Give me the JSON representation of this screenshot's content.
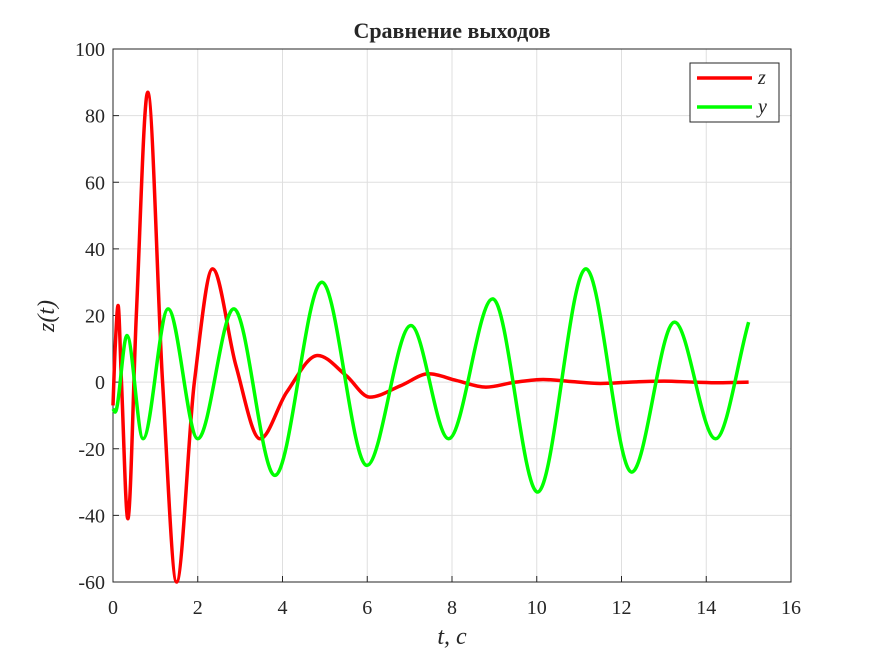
{
  "chart_data": {
    "type": "line",
    "title": "Сравнение выходов",
    "x_label": "t, c",
    "y_label": "z(t)",
    "xlim": [
      0,
      16
    ],
    "xticks": [
      0,
      2,
      4,
      6,
      8,
      10,
      12,
      14,
      16
    ],
    "ylim": [
      -60,
      100
    ],
    "yticks": [
      -60,
      -40,
      -20,
      0,
      20,
      40,
      60,
      80,
      100
    ],
    "grid": true,
    "legend": "upper-right",
    "series": [
      {
        "name": "z",
        "color": "#ff0000",
        "x": [
          0,
          0.05,
          0.12,
          0.2,
          0.35,
          0.55,
          0.82,
          1.17,
          1.5,
          1.92,
          2.35,
          2.9,
          3.47,
          4.1,
          4.83,
          5.5,
          6.06,
          6.8,
          7.45,
          8.1,
          8.8,
          9.5,
          10.15,
          10.8,
          11.5,
          12.2,
          13,
          13.7,
          14.3,
          15
        ],
        "values": [
          -7,
          10,
          23,
          0,
          -41,
          20,
          87,
          0,
          -60,
          0,
          34,
          5,
          -17,
          -3,
          8,
          2,
          -4.5,
          -1,
          2.5,
          0.5,
          -1.5,
          0,
          0.8,
          0.2,
          -0.4,
          0,
          0.3,
          0,
          -0.2,
          0
        ]
      },
      {
        "name": "y",
        "color": "#00ff00",
        "x": [
          0,
          0.05,
          0.33,
          0.71,
          1.3,
          2.0,
          2.85,
          3.82,
          4.93,
          5.99,
          7.03,
          7.92,
          8.96,
          10.02,
          11.16,
          12.24,
          13.25,
          14.22,
          15
        ],
        "values": [
          -8,
          -9,
          14,
          -17,
          22,
          -17,
          22,
          -28,
          30,
          -25,
          17,
          -17,
          25,
          -33,
          34,
          -27,
          18,
          -17,
          18
        ]
      }
    ]
  }
}
